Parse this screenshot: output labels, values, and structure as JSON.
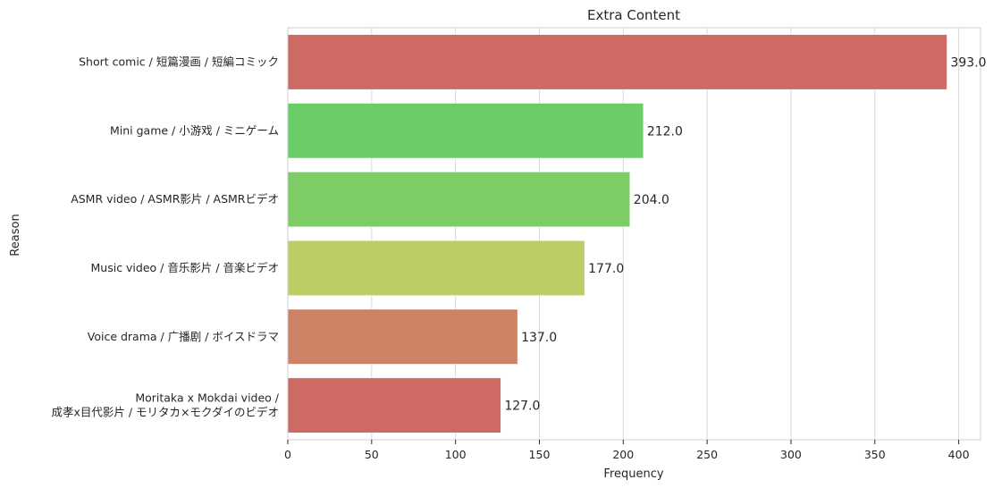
{
  "chart_data": {
    "type": "bar",
    "orientation": "horizontal",
    "title": "Extra Content",
    "xlabel": "Frequency",
    "ylabel": "Reason",
    "xlim": [
      0,
      413
    ],
    "xticks": [
      0,
      50,
      100,
      150,
      200,
      250,
      300,
      350,
      400
    ],
    "grid": "vertical",
    "categories": [
      [
        "Short comic / 短篇漫画 / 短編コミック"
      ],
      [
        "Mini game / 小游戏 / ミニゲーム"
      ],
      [
        "ASMR video / ASMR影片 / ASMRビデオ"
      ],
      [
        "Music video / 音乐影片 / 音楽ビデオ"
      ],
      [
        "Voice drama / 广播剧 / ボイスドラマ"
      ],
      [
        "Moritaka x Mokdai video /",
        "成孝x目代影片 / モリタカ×モクダイのビデオ"
      ]
    ],
    "values": [
      393.0,
      212.0,
      204.0,
      177.0,
      137.0,
      127.0
    ],
    "value_labels": [
      "393.0",
      "212.0",
      "204.0",
      "177.0",
      "137.0",
      "127.0"
    ],
    "colors": [
      "#cd6a63",
      "#6acd66",
      "#7dcc66",
      "#bccd66",
      "#cd8266",
      "#cd6a63"
    ]
  }
}
